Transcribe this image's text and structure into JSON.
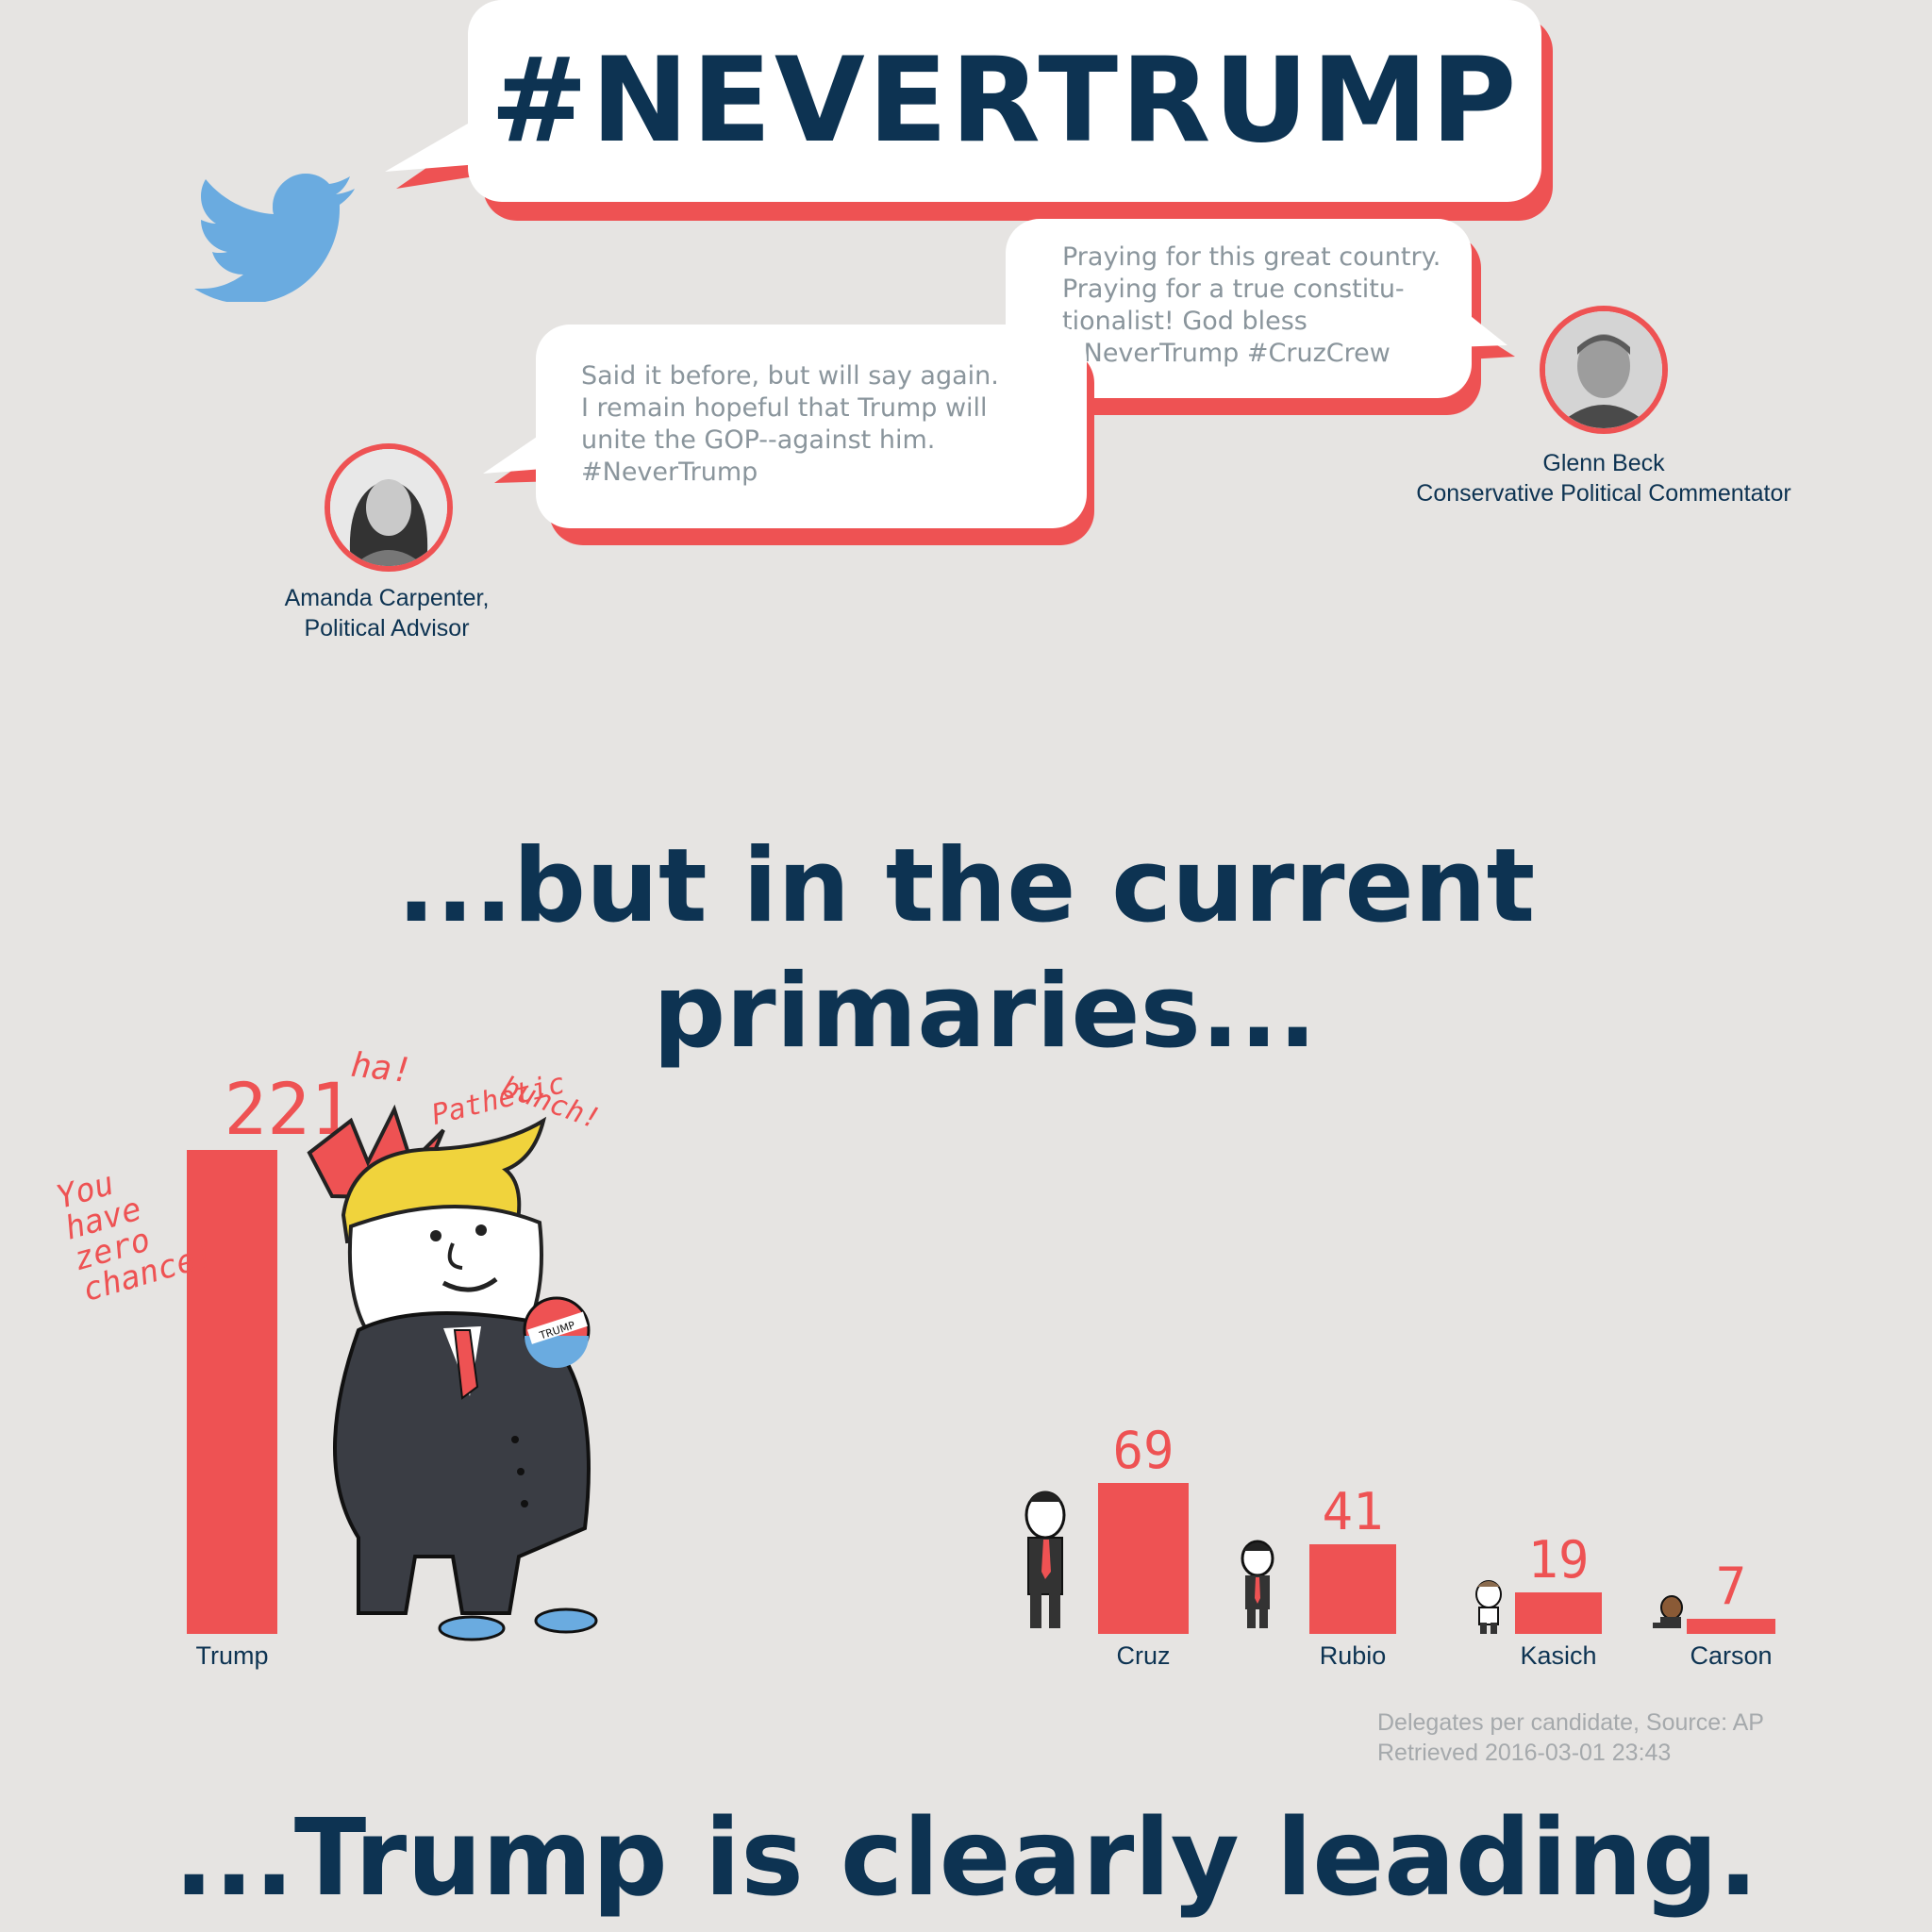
{
  "header": {
    "hashtag": "#NEVERTRUMP",
    "twitter_icon": "twitter-bird-icon",
    "brand_color": "#0d3352",
    "accent_color": "#ee5253",
    "twitter_color": "#6aabe0"
  },
  "tweets": [
    {
      "text": "Praying for this great country.\nPraying for a true constitu-\ntionalist! God bless\n#NeverTrump #CruzCrew",
      "author_line1": "Glenn Beck",
      "author_line2": "Conservative Political Commentator"
    },
    {
      "text": "Said it before, but will say again.\nI remain hopeful that Trump will\nunite the GOP--against him.\n#NeverTrump",
      "author_line1": "Amanda Carpenter,",
      "author_line2": "Political Advisor"
    }
  ],
  "headline_1_line1": "...but in the current",
  "headline_1_line2": "primaries...",
  "headline_2": "...Trump is clearly leading.",
  "annotations": {
    "zero_chance": "You\nhave\nzero\nchance!",
    "ha": "ha!",
    "pathetic_1": "Pathetic",
    "pathetic_2": "bunch!",
    "badge": "TRUMP"
  },
  "chart_data": {
    "type": "bar",
    "categories": [
      "Trump",
      "Cruz",
      "Rubio",
      "Kasich",
      "Carson"
    ],
    "values": [
      221,
      69,
      41,
      19,
      7
    ],
    "value_labels": [
      "221",
      "69",
      "41",
      "19",
      "7"
    ],
    "title": "",
    "xlabel": "",
    "ylabel": "",
    "ylim": [
      0,
      221
    ],
    "grid": false,
    "bar_color": "#ee5253",
    "source_line1": "Delegates per candidate, Source: AP",
    "source_line2": "Retrieved 2016-03-01 23:43"
  }
}
